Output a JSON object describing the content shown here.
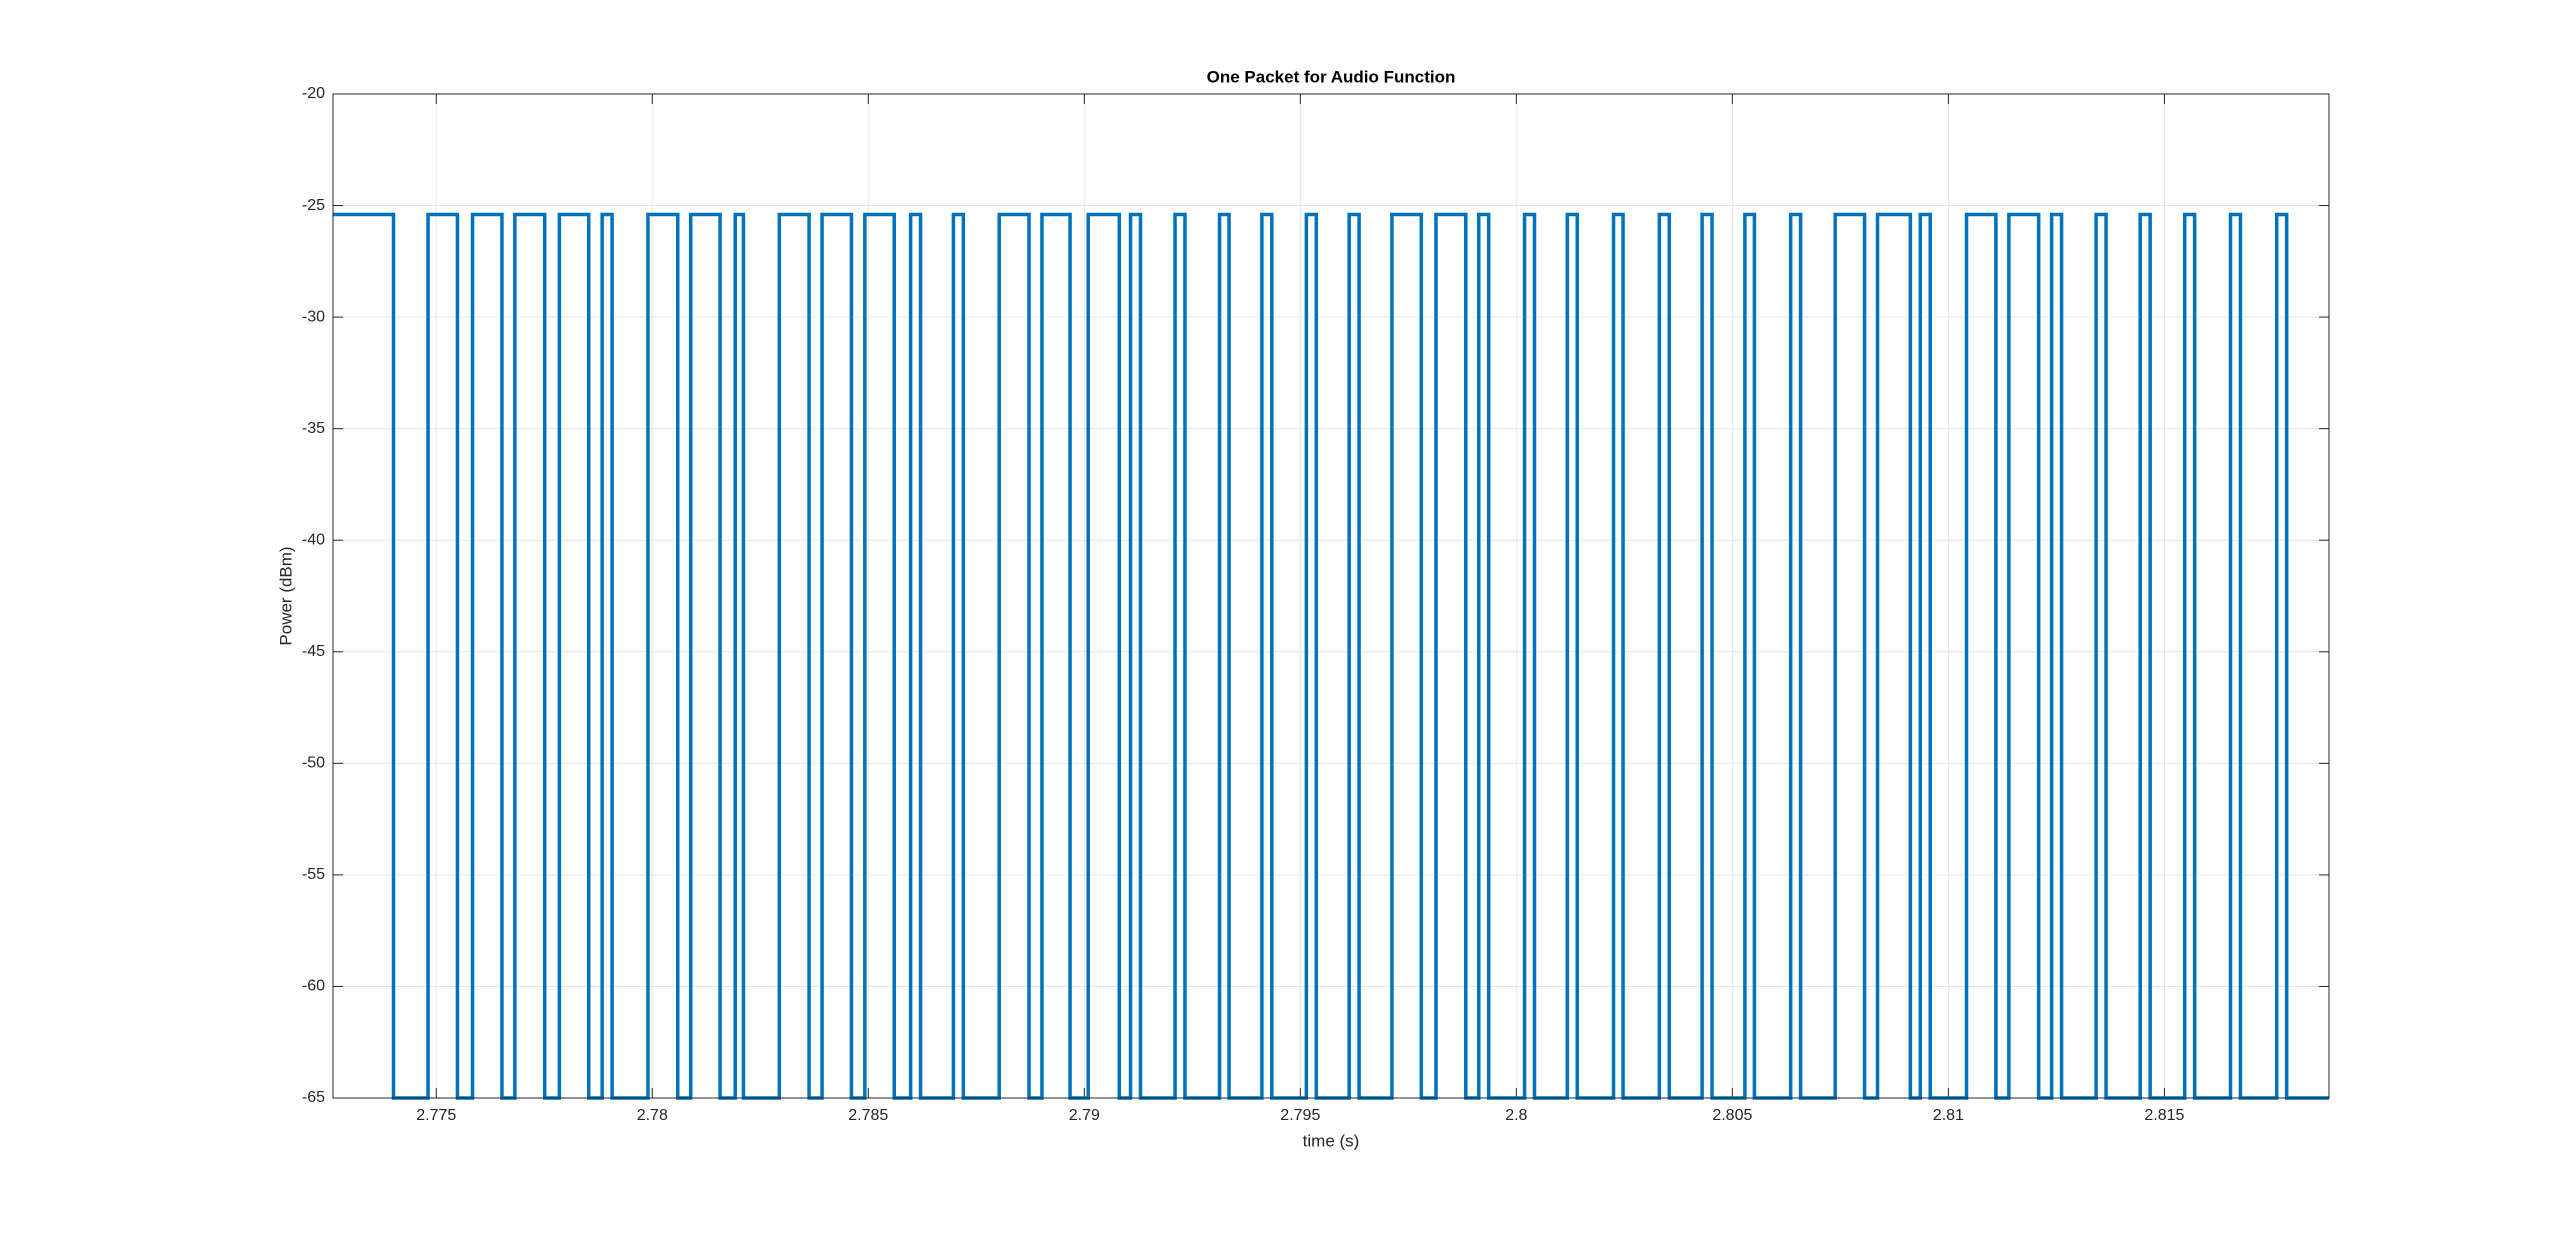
{
  "chart_data": {
    "type": "step",
    "title": "One Packet for Audio Function",
    "x_label": "time (s)",
    "y_label": "Power (dBm)",
    "x": [
      2.77261,
      2.77401,
      2.77481,
      2.77549,
      2.77584,
      2.77652,
      2.77682,
      2.77751,
      2.77785,
      2.77853,
      2.77884,
      2.77907,
      2.7799,
      2.78059,
      2.78089,
      2.78157,
      2.78192,
      2.78211,
      2.78294,
      2.78363,
      2.78393,
      2.78461,
      2.78492,
      2.7856,
      2.78598,
      2.78621,
      2.78697,
      2.7872,
      2.78803,
      2.78872,
      2.78902,
      2.78967,
      2.79009,
      2.79081,
      2.79107,
      2.7913,
      2.7921,
      2.79233,
      2.79313,
      2.79335,
      2.79411,
      2.79434,
      2.79514,
      2.79537,
      2.79613,
      2.79636,
      2.79712,
      2.7978,
      2.79814,
      2.79883,
      2.79913,
      2.79936,
      2.80019,
      2.80042,
      2.80118,
      2.80141,
      2.80225,
      2.80247,
      2.80331,
      2.80354,
      2.8043,
      2.80453,
      2.80529,
      2.80551,
      2.80635,
      2.80658,
      2.80738,
      2.80806,
      2.80836,
      2.80912,
      2.80935,
      2.80958,
      2.81042,
      2.8111,
      2.8114,
      2.81209,
      2.81239,
      2.81262,
      2.81342,
      2.81365,
      2.81444,
      2.81467,
      2.81547,
      2.8157,
      2.81653,
      2.81676,
      2.8176,
      2.81783
    ],
    "series": [
      {
        "color": "#0072bd",
        "values": [
          -25.4,
          -65,
          -25.4,
          -65,
          -25.4,
          -65,
          -25.4,
          -65,
          -25.4,
          -65,
          -25.4,
          -65,
          -25.4,
          -65,
          -25.4,
          -65,
          -25.4,
          -65,
          -25.4,
          -65,
          -25.4,
          -65,
          -25.4,
          -65,
          -25.4,
          -65,
          -25.4,
          -65,
          -25.4,
          -65,
          -25.4,
          -65,
          -25.4,
          -65,
          -25.4,
          -65,
          -25.4,
          -65,
          -25.4,
          -65,
          -25.4,
          -65,
          -25.4,
          -65,
          -25.4,
          -65,
          -25.4,
          -65,
          -25.4,
          -65,
          -25.4,
          -65,
          -25.4,
          -65,
          -25.4,
          -65,
          -25.4,
          -65,
          -25.4,
          -65,
          -25.4,
          -65,
          -25.4,
          -65,
          -25.4,
          -65,
          -25.4,
          -65,
          -25.4,
          -65,
          -25.4,
          -65,
          -25.4,
          -65,
          -25.4,
          -65,
          -25.4,
          -65,
          -25.4,
          -65,
          -25.4,
          -65,
          -25.4,
          -65,
          -25.4,
          -65,
          -25.4,
          -65
        ]
      }
    ],
    "xlim": [
      2.77261,
      2.81881
    ],
    "xticks": [
      2.775,
      2.78,
      2.785,
      2.79,
      2.795,
      2.8,
      2.805,
      2.81,
      2.815
    ],
    "ylim": [
      -65,
      -20
    ],
    "yticks": [
      -65,
      -60,
      -55,
      -50,
      -45,
      -40,
      -35,
      -30,
      -25,
      -20
    ],
    "grid": true
  }
}
